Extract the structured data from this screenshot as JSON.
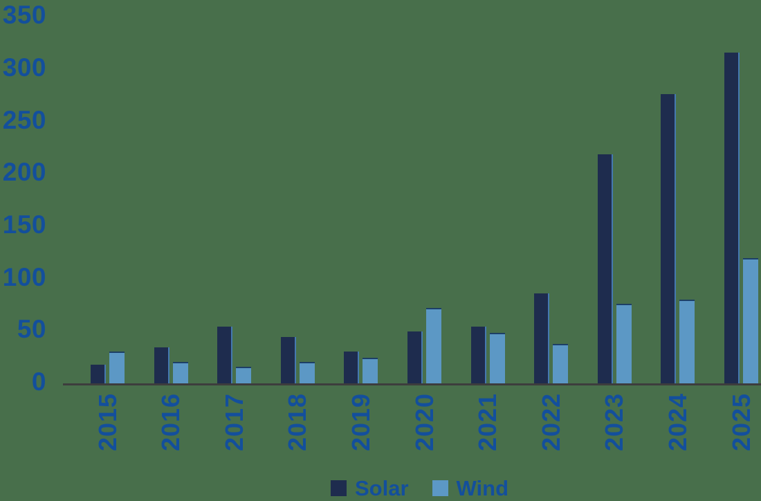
{
  "background_color": "#486f4b",
  "text_color": "#134f9c",
  "axis_line_color": "#3d3d3d",
  "chart_data": {
    "type": "bar",
    "title": "",
    "xlabel": "",
    "ylabel": "",
    "categories": [
      "2015",
      "2016",
      "2017",
      "2018",
      "2019",
      "2020",
      "2021",
      "2022",
      "2023",
      "2024",
      "2025"
    ],
    "series": [
      {
        "name": "Solar",
        "color": "#1e2c4e",
        "edge_color": "#4579b1",
        "values": [
          18,
          35,
          55,
          45,
          31,
          50,
          55,
          87,
          221,
          279,
          319
        ]
      },
      {
        "name": "Wind",
        "color": "#5c98c5",
        "edge_color": "#1d3f66",
        "values": [
          31,
          21,
          16,
          21,
          25,
          73,
          49,
          38,
          77,
          81,
          121
        ]
      }
    ],
    "y_ticks": [
      0,
      50,
      100,
      150,
      200,
      250,
      300,
      350
    ],
    "ylim": [
      0,
      350
    ],
    "grid": false,
    "legend_position": "bottom-center"
  },
  "legend": {
    "items": [
      {
        "label": "Solar"
      },
      {
        "label": "Wind"
      }
    ]
  }
}
